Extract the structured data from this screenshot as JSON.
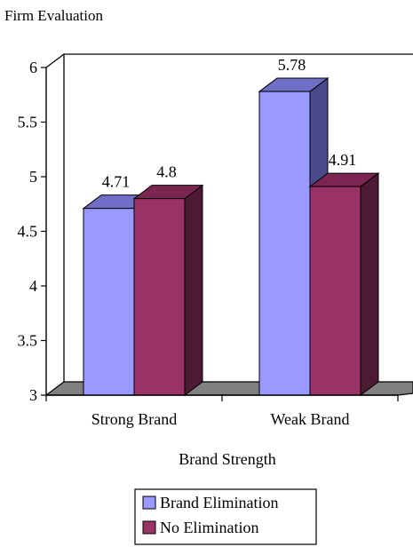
{
  "chart_data": {
    "type": "bar",
    "title": "Firm Evaluation",
    "xlabel": "Brand Strength",
    "ylabel": "",
    "categories": [
      "Strong Brand",
      "Weak Brand"
    ],
    "series": [
      {
        "name": "Brand Elimination",
        "values": [
          4.71,
          5.78
        ]
      },
      {
        "name": "No Elimination",
        "values": [
          4.8,
          4.91
        ]
      }
    ],
    "data_labels": [
      [
        "4.71",
        "5.78"
      ],
      [
        "4.8",
        "4.91"
      ]
    ],
    "ylim": [
      3,
      6
    ],
    "yticks": [
      "3",
      "3.5",
      "4",
      "4.5",
      "5",
      "5.5",
      "6"
    ],
    "three_d": true,
    "grid": false,
    "legend_position": "bottom",
    "colors": {
      "series": [
        {
          "front": "#9999ff",
          "top": "#6f6fc8",
          "side": "#4a4a8a"
        },
        {
          "front": "#993366",
          "top": "#7a2650",
          "side": "#4d1a33"
        }
      ],
      "floor": "#808080",
      "axis": "#000000"
    }
  }
}
